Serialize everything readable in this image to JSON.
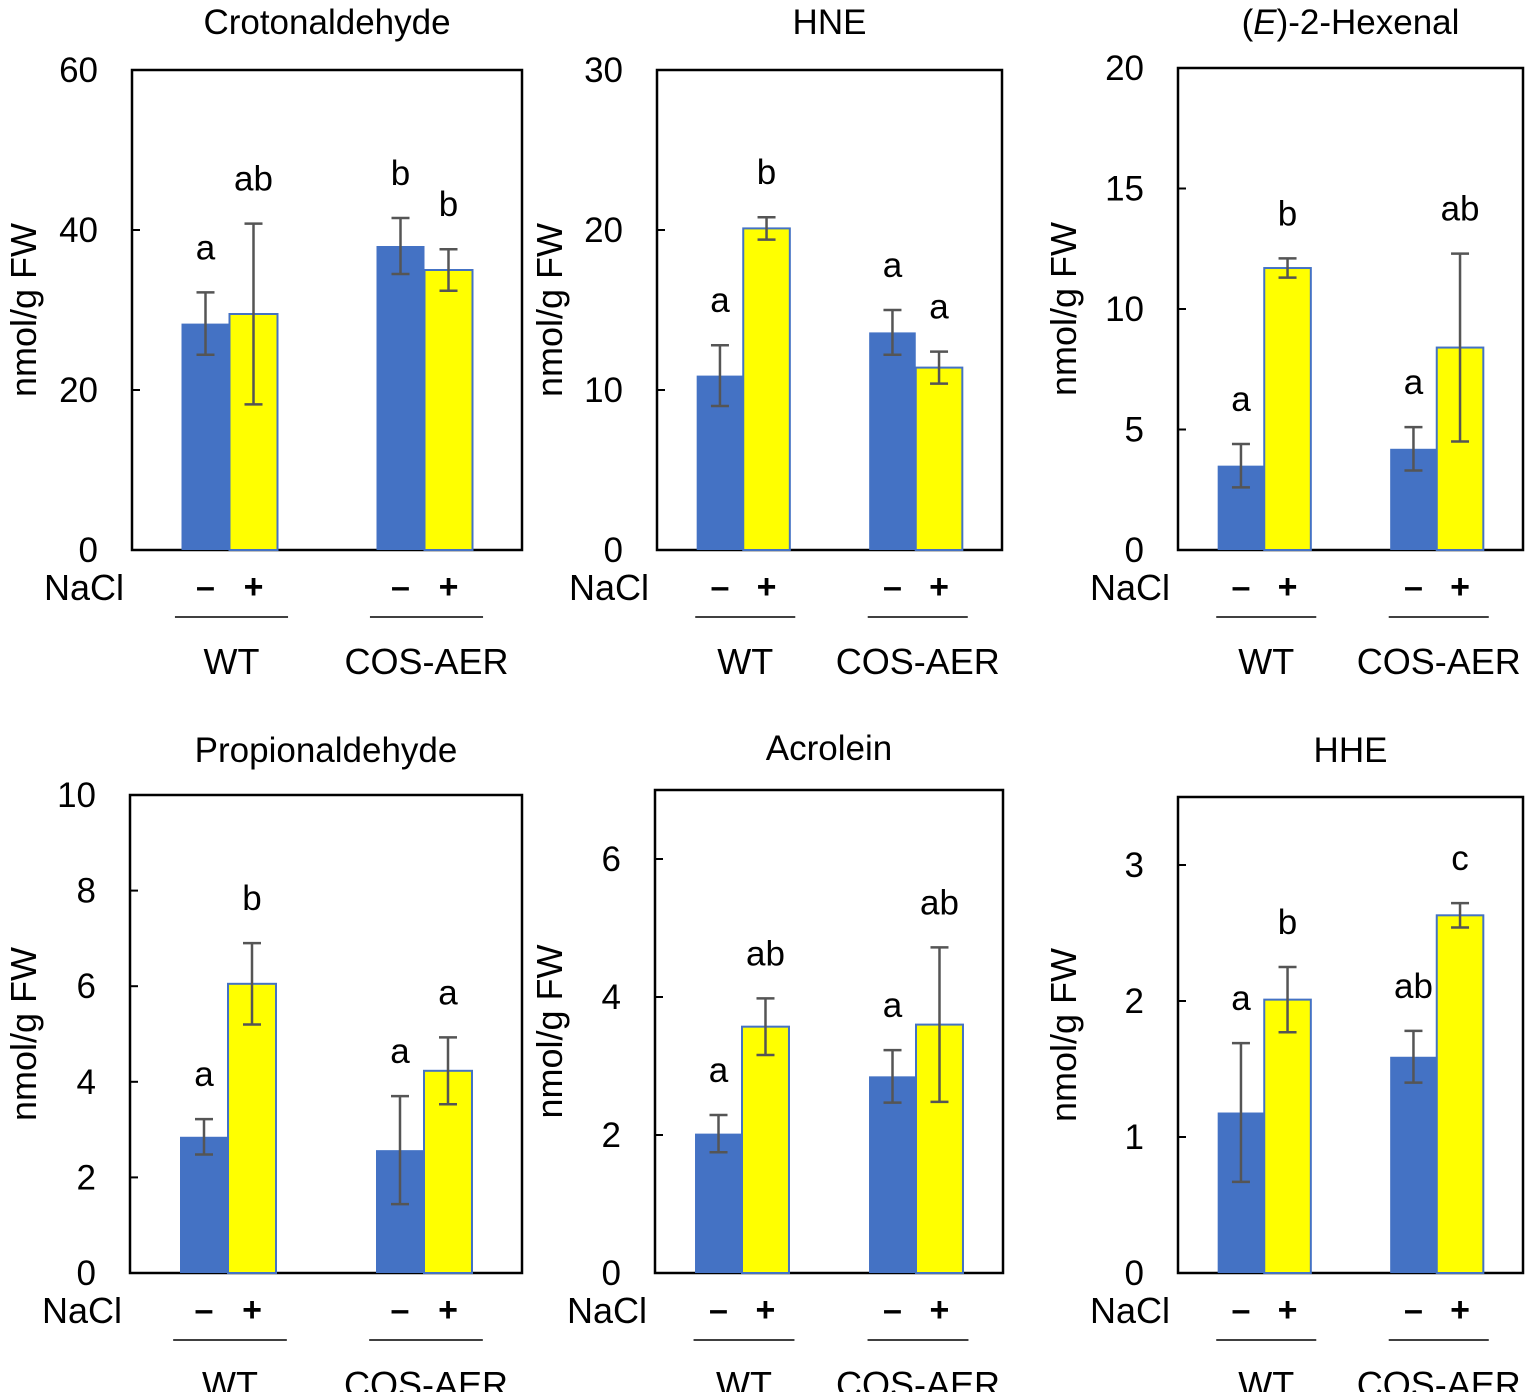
{
  "figure": {
    "ylabel": "nmol/g FW",
    "row_label": "NaCl",
    "colors": {
      "minus": "#4472C4",
      "plus": "#FFFF00",
      "plus_edge": "#4472C4",
      "error": "#555555"
    }
  },
  "chart_data": [
    {
      "type": "bar",
      "title": "Crotonaldehyde",
      "title_italic": "",
      "ylabel": "nmol/g FW",
      "ylim": [
        0,
        60
      ],
      "yticks": [
        0,
        20,
        40,
        60
      ],
      "groups": [
        "WT",
        "COS-AER"
      ],
      "series": [
        {
          "name": "–",
          "values": [
            28.3,
            38.0
          ],
          "errors": [
            3.9,
            3.5
          ],
          "letters": [
            "a",
            "b"
          ]
        },
        {
          "name": "+",
          "values": [
            29.5,
            35.0
          ],
          "errors": [
            11.3,
            2.6
          ],
          "letters": [
            "ab",
            "b"
          ]
        }
      ]
    },
    {
      "type": "bar",
      "title": "HNE",
      "title_italic": "",
      "ylabel": "nmol/g FW",
      "ylim": [
        0,
        30
      ],
      "yticks": [
        0,
        10,
        20,
        30
      ],
      "groups": [
        "WT",
        "COS-AER"
      ],
      "series": [
        {
          "name": "–",
          "values": [
            10.9,
            13.6
          ],
          "errors": [
            1.9,
            1.4
          ],
          "letters": [
            "a",
            "a"
          ]
        },
        {
          "name": "+",
          "values": [
            20.1,
            11.4
          ],
          "errors": [
            0.7,
            1.0
          ],
          "letters": [
            "b",
            "a"
          ]
        }
      ]
    },
    {
      "type": "bar",
      "title": ")-2-Hexenal",
      "title_italic": "E",
      "ylabel": "nmol/g FW",
      "ylim": [
        0,
        20
      ],
      "yticks": [
        0,
        5,
        10,
        15,
        20
      ],
      "groups": [
        "WT",
        "COS-AER"
      ],
      "series": [
        {
          "name": "–",
          "values": [
            3.5,
            4.2
          ],
          "errors": [
            0.9,
            0.9
          ],
          "letters": [
            "a",
            "a"
          ]
        },
        {
          "name": "+",
          "values": [
            11.7,
            8.4
          ],
          "errors": [
            0.4,
            3.9
          ],
          "letters": [
            "b",
            "ab"
          ]
        }
      ]
    },
    {
      "type": "bar",
      "title": "Propionaldehyde",
      "title_italic": "",
      "ylabel": "nmol/g FW",
      "ylim": [
        0,
        10
      ],
      "yticks": [
        0,
        2,
        4,
        6,
        8,
        10
      ],
      "groups": [
        "WT",
        "COS-AER"
      ],
      "series": [
        {
          "name": "–",
          "values": [
            2.85,
            2.57
          ],
          "errors": [
            0.37,
            1.13
          ],
          "letters": [
            "a",
            "a"
          ]
        },
        {
          "name": "+",
          "values": [
            6.05,
            4.23
          ],
          "errors": [
            0.85,
            0.7
          ],
          "letters": [
            "b",
            "a"
          ]
        }
      ]
    },
    {
      "type": "bar",
      "title": "Acrolein",
      "title_italic": "",
      "ylabel": "nmol/g FW",
      "ylim": [
        0,
        7
      ],
      "yticks": [
        0,
        2,
        4,
        6
      ],
      "groups": [
        "WT",
        "COS-AER"
      ],
      "series": [
        {
          "name": "–",
          "values": [
            2.02,
            2.85
          ],
          "errors": [
            0.27,
            0.38
          ],
          "letters": [
            "a",
            "a"
          ]
        },
        {
          "name": "+",
          "values": [
            3.57,
            3.6
          ],
          "errors": [
            0.41,
            1.12
          ],
          "letters": [
            "ab",
            "ab"
          ]
        }
      ]
    },
    {
      "type": "bar",
      "title": "HHE",
      "title_italic": "",
      "ylabel": "nmol/g FW",
      "ylim": [
        0,
        3.5
      ],
      "yticks": [
        0,
        1,
        2,
        3
      ],
      "groups": [
        "WT",
        "COS-AER"
      ],
      "series": [
        {
          "name": "–",
          "values": [
            1.18,
            1.59
          ],
          "errors": [
            0.51,
            0.19
          ],
          "letters": [
            "a",
            "ab"
          ]
        },
        {
          "name": "+",
          "values": [
            2.01,
            2.63
          ],
          "errors": [
            0.24,
            0.09
          ],
          "letters": [
            "b",
            "c"
          ]
        }
      ]
    }
  ]
}
